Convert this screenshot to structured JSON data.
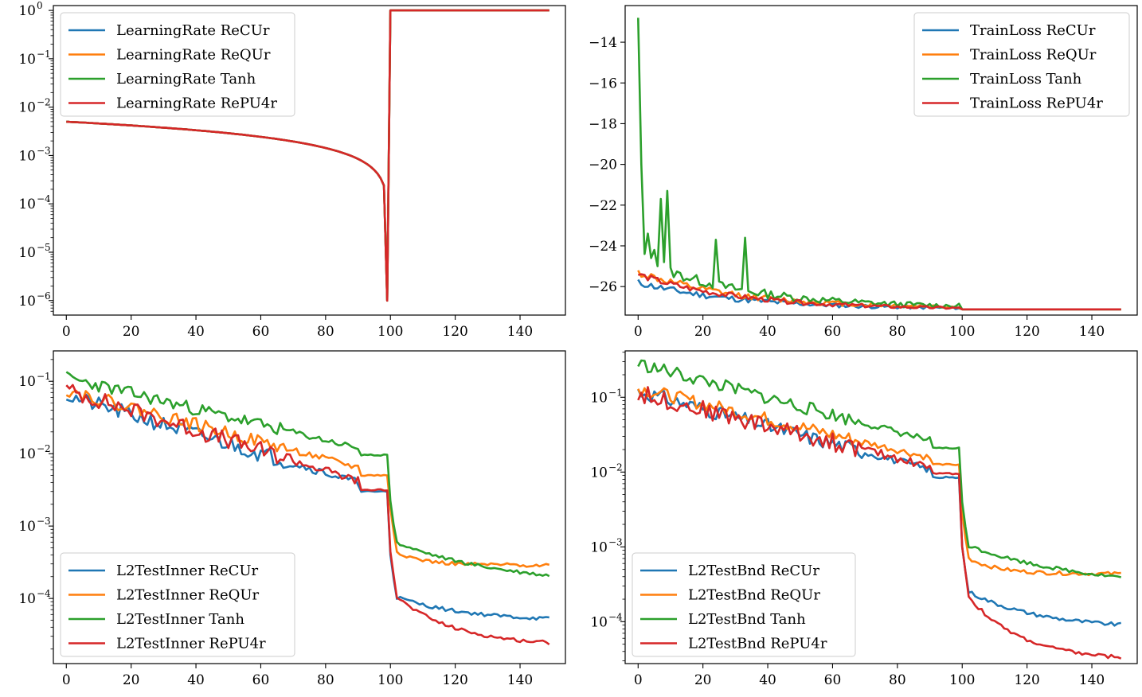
{
  "colors": {
    "ReCUr": "#1f77b4",
    "ReQUr": "#ff7f0e",
    "Tanh": "#2ca02c",
    "RePU4r": "#d62728"
  },
  "chart_data": [
    {
      "type": "line",
      "yscale": "log",
      "xlim": [
        -4,
        154
      ],
      "ylim_exp": [
        -6.3,
        0.1
      ],
      "x_ticks": [
        0,
        20,
        40,
        60,
        80,
        100,
        120,
        140
      ],
      "y_ticks": [
        0,
        -1,
        -2,
        -3,
        -4,
        -5,
        -6
      ],
      "legend_position": "upper left",
      "legend_order": [
        "ReCUr",
        "ReQUr",
        "Tanh",
        "RePU4r"
      ],
      "series": [
        {
          "name": "LearningRate ReCUr",
          "key": "ReCUr",
          "gen": "lr",
          "p": {
            "seed": 1
          }
        },
        {
          "name": "LearningRate ReQUr",
          "key": "ReQUr",
          "gen": "lr",
          "p": {
            "seed": 2
          }
        },
        {
          "name": "LearningRate Tanh",
          "key": "Tanh",
          "gen": "lr",
          "p": {
            "seed": 3
          }
        },
        {
          "name": "LearningRate RePU4r",
          "key": "RePU4r",
          "gen": "lr",
          "p": {
            "seed": 4
          }
        }
      ]
    },
    {
      "type": "line",
      "yscale": "linear",
      "xlim": [
        -4,
        154
      ],
      "ylim": [
        -27.4,
        -12.2
      ],
      "x_ticks": [
        0,
        20,
        40,
        60,
        80,
        100,
        120,
        140
      ],
      "y_ticks": [
        -14,
        -16,
        -18,
        -20,
        -22,
        -24,
        -26
      ],
      "legend_position": "upper right",
      "legend_order": [
        "ReCUr",
        "ReQUr",
        "Tanh",
        "RePU4r"
      ],
      "series": [
        {
          "name": "TrainLoss ReCUr",
          "key": "ReCUr",
          "gen": "loss",
          "p": {
            "start": -25.8,
            "plateau": -27.05,
            "final": -27.12,
            "noise": 0.22,
            "seed": 11
          }
        },
        {
          "name": "TrainLoss ReQUr",
          "key": "ReQUr",
          "gen": "loss",
          "p": {
            "start": -25.3,
            "plateau": -27.0,
            "final": -27.12,
            "noise": 0.25,
            "seed": 12
          }
        },
        {
          "name": "TrainLoss Tanh",
          "key": "Tanh",
          "gen": "loss",
          "p": {
            "start": -24.6,
            "plateau": -26.95,
            "final": -27.12,
            "noise": 0.35,
            "seed": 13
          },
          "overrides": {
            "0": -12.8,
            "1": -20.0,
            "2": -24.4,
            "3": -23.4,
            "4": -24.6,
            "5": -24.2,
            "6": -25.0,
            "7": -21.7,
            "8": -24.8,
            "9": -21.3,
            "24": -23.7,
            "33": -23.6
          }
        },
        {
          "name": "TrainLoss RePU4r",
          "key": "RePU4r",
          "gen": "loss",
          "p": {
            "start": -25.4,
            "plateau": -27.06,
            "final": -27.12,
            "noise": 0.2,
            "seed": 14
          }
        }
      ]
    },
    {
      "type": "line",
      "yscale": "log",
      "xlim": [
        -4,
        154
      ],
      "ylim_exp": [
        -4.9,
        -0.58
      ],
      "x_ticks": [
        0,
        20,
        40,
        60,
        80,
        100,
        120,
        140
      ],
      "y_ticks": [
        -1,
        -2,
        -3,
        -4
      ],
      "legend_position": "lower left",
      "legend_order": [
        "ReCUr",
        "ReQUr",
        "Tanh",
        "RePU4r"
      ],
      "series": [
        {
          "name": "L2TestInner ReCUr",
          "key": "ReCUr",
          "gen": "l2",
          "p": {
            "a0": -1.2,
            "a1": -2.52,
            "f1": -3.95,
            "f150": -4.32,
            "tau": 22,
            "noise": 0.11,
            "seed": 21
          }
        },
        {
          "name": "L2TestInner ReQUr",
          "key": "ReQUr",
          "gen": "l2",
          "p": {
            "a0": -1.12,
            "a1": -2.3,
            "f1": -3.3,
            "f150": -3.54,
            "tau": 8,
            "noise": 0.09,
            "seed": 22
          }
        },
        {
          "name": "L2TestInner Tanh",
          "key": "Tanh",
          "gen": "l2",
          "p": {
            "a0": -0.95,
            "a1": -2.02,
            "f1": -3.2,
            "f150": -3.84,
            "tau": 35,
            "noise": 0.09,
            "seed": 23
          }
        },
        {
          "name": "L2TestInner RePU4r",
          "key": "RePU4r",
          "gen": "l2",
          "p": {
            "a0": -1.12,
            "a1": -2.5,
            "f1": -3.9,
            "f150": -4.66,
            "tau": 18,
            "noise": 0.12,
            "seed": 24
          }
        }
      ]
    },
    {
      "type": "line",
      "yscale": "log",
      "xlim": [
        -4,
        154
      ],
      "ylim_exp": [
        -4.56,
        -0.38
      ],
      "x_ticks": [
        0,
        20,
        40,
        60,
        80,
        100,
        120,
        140
      ],
      "y_ticks": [
        -1,
        -2,
        -3,
        -4
      ],
      "legend_position": "lower left",
      "legend_order": [
        "ReCUr",
        "ReQUr",
        "Tanh",
        "RePU4r"
      ],
      "series": [
        {
          "name": "L2TestBnd ReCUr",
          "key": "ReCUr",
          "gen": "l2",
          "p": {
            "a0": -0.92,
            "a1": -2.07,
            "f1": -3.55,
            "f150": -4.1,
            "tau": 22,
            "noise": 0.1,
            "seed": 31
          }
        },
        {
          "name": "L2TestBnd ReQUr",
          "key": "ReQUr",
          "gen": "l2",
          "p": {
            "a0": -0.88,
            "a1": -1.9,
            "f1": -3.1,
            "f150": -3.36,
            "tau": 9,
            "noise": 0.09,
            "seed": 32
          }
        },
        {
          "name": "L2TestBnd Tanh",
          "key": "Tanh",
          "gen": "l2",
          "p": {
            "a0": -0.55,
            "a1": -1.68,
            "f1": -2.95,
            "f150": -3.55,
            "tau": 35,
            "noise": 0.09,
            "seed": 33
          }
        },
        {
          "name": "L2TestBnd RePU4r",
          "key": "RePU4r",
          "gen": "l2",
          "p": {
            "a0": -0.95,
            "a1": -2.02,
            "f1": -3.55,
            "f150": -4.52,
            "tau": 16,
            "noise": 0.12,
            "seed": 34
          }
        }
      ]
    }
  ]
}
